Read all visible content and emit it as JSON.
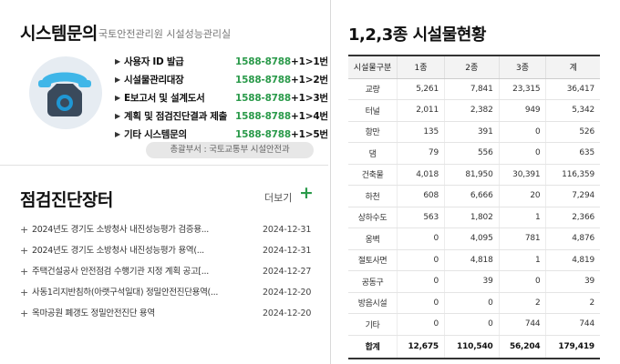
{
  "system_inquiry": {
    "title": "시스템문의",
    "subtitle": "국토안전관리원 시설성능관리실",
    "items": [
      {
        "label": "사용자 ID 발급",
        "phone": "1588-8788",
        "ext": "+1>1번"
      },
      {
        "label": "시설물관리대장",
        "phone": "1588-8788",
        "ext": "+1>2번"
      },
      {
        "label": "E보고서 및 설계도서",
        "phone": "1588-8788",
        "ext": "+1>3번"
      },
      {
        "label": "계획 및 점검진단결과 제출",
        "phone": "1588-8788",
        "ext": "+1>4번"
      },
      {
        "label": "기타 시스템문의",
        "phone": "1588-8788",
        "ext": "+1>5번"
      }
    ],
    "department": "총괄부서 : 국토교통부 시설안전과",
    "icon": "phone-icon",
    "accent_color": "#2a9a4a"
  },
  "notices": {
    "title": "점검진단장터",
    "more_label": "더보기",
    "items": [
      {
        "title": "2024년도 경기도 소방청사 내진성능평가 검증용...",
        "date": "2024-12-31"
      },
      {
        "title": "2024년도 경기도 소방청사 내진성능평가 용역(...",
        "date": "2024-12-31"
      },
      {
        "title": "주택건설공사 안전점검 수행기관 지정 계획 공고[...",
        "date": "2024-12-27"
      },
      {
        "title": "사동1리지반침하(아랫구석일대) 정밀안전진단용역(...",
        "date": "2024-12-20"
      },
      {
        "title": "옥마공원 폐갱도 정밀안전진단 용역",
        "date": "2024-12-20"
      }
    ]
  },
  "facility_status": {
    "title": "1,2,3종 시설물현황",
    "headers": [
      "시설물구분",
      "1종",
      "2종",
      "3종",
      "계"
    ],
    "rows": [
      [
        "교량",
        "5,261",
        "7,841",
        "23,315",
        "36,417"
      ],
      [
        "터널",
        "2,011",
        "2,382",
        "949",
        "5,342"
      ],
      [
        "항만",
        "135",
        "391",
        "0",
        "526"
      ],
      [
        "댐",
        "79",
        "556",
        "0",
        "635"
      ],
      [
        "건축물",
        "4,018",
        "81,950",
        "30,391",
        "116,359"
      ],
      [
        "하천",
        "608",
        "6,666",
        "20",
        "7,294"
      ],
      [
        "상하수도",
        "563",
        "1,802",
        "1",
        "2,366"
      ],
      [
        "옹벽",
        "0",
        "4,095",
        "781",
        "4,876"
      ],
      [
        "절토사면",
        "0",
        "4,818",
        "1",
        "4,819"
      ],
      [
        "공동구",
        "0",
        "39",
        "0",
        "39"
      ],
      [
        "방음시설",
        "0",
        "0",
        "2",
        "2"
      ],
      [
        "기타",
        "0",
        "0",
        "744",
        "744"
      ]
    ],
    "total": [
      "합계",
      "12,675",
      "110,540",
      "56,204",
      "179,419"
    ]
  }
}
